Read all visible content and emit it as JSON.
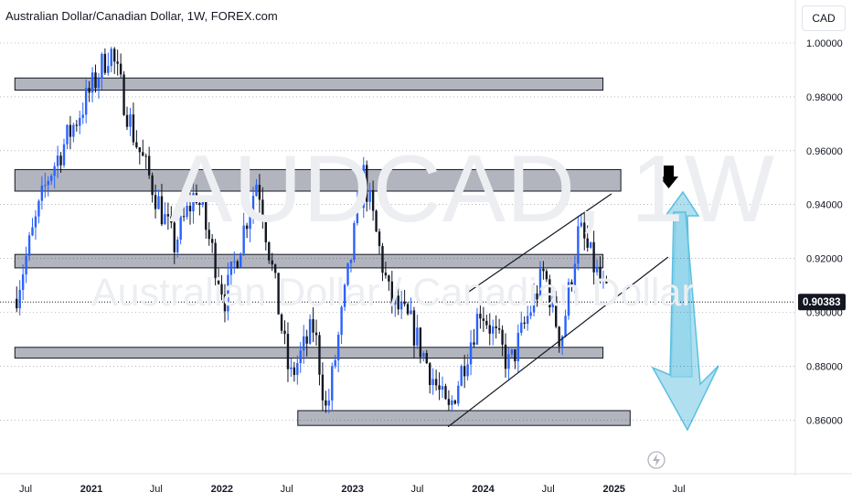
{
  "header": {
    "title": "Australian Dollar/Canadian Dollar, 1W, FOREX.com",
    "currency": "CAD"
  },
  "watermark": {
    "symbol": "AUDCAD, 1W",
    "name": "Australian Dollar / Canadian Dollar"
  },
  "colors": {
    "bull": "#2962ff",
    "bear": "#131722",
    "zone_fill": "#b2b5be",
    "forecast_arrow": "#8fd3ea",
    "marker_arrow": "#000000"
  },
  "chart_data": {
    "type": "candlestick",
    "y_ticks": [
      "1.00000",
      "0.98000",
      "0.96000",
      "0.94000",
      "0.92000",
      "0.90000",
      "0.88000",
      "0.86000"
    ],
    "y_tick_values": [
      1.0,
      0.98,
      0.96,
      0.94,
      0.92,
      0.9,
      0.88,
      0.86
    ],
    "ylim": [
      0.855,
      1.015
    ],
    "x_ticks": [
      "Jul",
      "2021",
      "Jul",
      "2022",
      "Jul",
      "2023",
      "Jul",
      "2024",
      "Jul",
      "2025",
      "Jul"
    ],
    "x_tick_dates": [
      "2020-07-01",
      "2021-01-01",
      "2021-07-01",
      "2022-01-01",
      "2022-07-01",
      "2023-01-01",
      "2023-07-01",
      "2024-01-01",
      "2024-07-01",
      "2025-01-01",
      "2025-07-01"
    ],
    "current_price": "0.90383",
    "current_price_value": 0.90383,
    "zones": [
      {
        "start": "2020-06-01",
        "end": "2024-12-01",
        "low": 0.9825,
        "high": 0.987
      },
      {
        "start": "2020-06-01",
        "end": "2025-01-20",
        "low": 0.945,
        "high": 0.953
      },
      {
        "start": "2020-06-01",
        "end": "2024-12-01",
        "low": 0.9165,
        "high": 0.9215
      },
      {
        "start": "2020-06-01",
        "end": "2024-12-01",
        "low": 0.883,
        "high": 0.887
      },
      {
        "start": "2022-08-01",
        "end": "2025-02-15",
        "low": 0.858,
        "high": 0.8635
      }
    ],
    "trend_lines": [
      {
        "from": {
          "date": "2023-09-25",
          "price": 0.8575
        },
        "to": {
          "date": "2025-06-01",
          "price": 0.9205
        }
      },
      {
        "from": {
          "date": "2023-11-15",
          "price": 0.907
        },
        "to": {
          "date": "2024-12-25",
          "price": 0.944
        }
      }
    ],
    "key_points": [
      {
        "date": "2020-06-01",
        "price": 0.905
      },
      {
        "date": "2020-09-01",
        "price": 0.95
      },
      {
        "date": "2021-01-01",
        "price": 0.983
      },
      {
        "date": "2021-02-22",
        "price": 0.998
      },
      {
        "date": "2021-05-01",
        "price": 0.965
      },
      {
        "date": "2021-08-20",
        "price": 0.925
      },
      {
        "date": "2021-10-20",
        "price": 0.945
      },
      {
        "date": "2022-01-10",
        "price": 0.905
      },
      {
        "date": "2022-04-10",
        "price": 0.95
      },
      {
        "date": "2022-07-10",
        "price": 0.875
      },
      {
        "date": "2022-09-15",
        "price": 0.895
      },
      {
        "date": "2022-10-20",
        "price": 0.862
      },
      {
        "date": "2023-02-01",
        "price": 0.951
      },
      {
        "date": "2023-04-15",
        "price": 0.905
      },
      {
        "date": "2023-06-15",
        "price": 0.895
      },
      {
        "date": "2023-09-25",
        "price": 0.862
      },
      {
        "date": "2023-12-25",
        "price": 0.902
      },
      {
        "date": "2024-03-15",
        "price": 0.88
      },
      {
        "date": "2024-06-20",
        "price": 0.915
      },
      {
        "date": "2024-08-05",
        "price": 0.889
      },
      {
        "date": "2024-09-25",
        "price": 0.931
      },
      {
        "date": "2024-12-15",
        "price": 0.904
      }
    ]
  }
}
